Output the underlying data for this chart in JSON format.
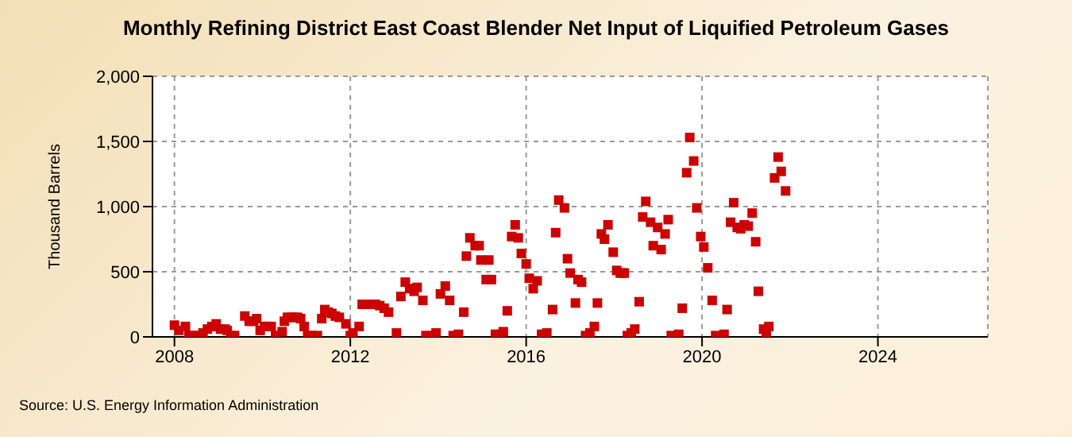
{
  "chart_data": {
    "type": "scatter",
    "title": "Monthly Refining District East Coast Blender Net Input of Liquified Petroleum Gases",
    "ylabel": "Thousand Barrels",
    "annotations": [
      "Source: U.S. Energy Information Administration"
    ],
    "marker": "square",
    "grid": true,
    "legend": false,
    "xlim": [
      2007.5,
      2026.5
    ],
    "xticks": [
      2008,
      2012,
      2016,
      2020,
      2024
    ],
    "ylim": [
      0,
      2000
    ],
    "yticks": [
      {
        "value": 0,
        "label": "0"
      },
      {
        "value": 500,
        "label": "500"
      },
      {
        "value": 1000,
        "label": "1,000"
      },
      {
        "value": 1500,
        "label": "1,500"
      },
      {
        "value": 2000,
        "label": "2,000"
      }
    ],
    "series": [
      {
        "color": "#cc0000",
        "x": [
          2008.0,
          2008.1,
          2008.25,
          2008.33,
          2008.42,
          2008.5,
          2008.65,
          2008.75,
          2008.85,
          2008.95,
          2009.05,
          2009.15,
          2009.2,
          2009.28,
          2009.37,
          2009.6,
          2009.7,
          2009.8,
          2009.87,
          2009.95,
          2010.05,
          2010.13,
          2010.2,
          2010.3,
          2010.45,
          2010.5,
          2010.57,
          2010.65,
          2010.73,
          2010.8,
          2010.87,
          2010.95,
          2011.03,
          2011.13,
          2011.25,
          2011.35,
          2011.42,
          2011.5,
          2011.58,
          2011.66,
          2011.75,
          2011.9,
          2012.0,
          2012.06,
          2012.2,
          2012.27,
          2012.47,
          2012.57,
          2012.67,
          2012.77,
          2012.87,
          2013.05,
          2013.15,
          2013.25,
          2013.35,
          2013.45,
          2013.52,
          2013.65,
          2013.72,
          2013.85,
          2013.95,
          2014.05,
          2014.16,
          2014.26,
          2014.34,
          2014.46,
          2014.58,
          2014.64,
          2014.72,
          2014.84,
          2014.93,
          2014.97,
          2015.09,
          2015.15,
          2015.21,
          2015.3,
          2015.42,
          2015.48,
          2015.57,
          2015.67,
          2015.75,
          2015.82,
          2015.89,
          2016.0,
          2016.07,
          2016.16,
          2016.25,
          2016.35,
          2016.47,
          2016.6,
          2016.67,
          2016.74,
          2016.87,
          2016.94,
          2017.0,
          2017.12,
          2017.18,
          2017.26,
          2017.35,
          2017.45,
          2017.55,
          2017.62,
          2017.71,
          2017.78,
          2017.86,
          2017.98,
          2018.06,
          2018.14,
          2018.19,
          2018.23,
          2018.3,
          2018.39,
          2018.47,
          2018.57,
          2018.65,
          2018.72,
          2018.83,
          2018.89,
          2018.99,
          2019.07,
          2019.16,
          2019.23,
          2019.3,
          2019.47,
          2019.55,
          2019.65,
          2019.72,
          2019.81,
          2019.88,
          2019.97,
          2020.04,
          2020.13,
          2020.23,
          2020.31,
          2020.5,
          2020.57,
          2020.65,
          2020.72,
          2020.8,
          2020.88,
          2020.96,
          2021.05,
          2021.14,
          2021.22,
          2021.28,
          2021.4,
          2021.46,
          2021.52,
          2021.65,
          2021.73,
          2021.8,
          2021.9
        ],
        "values": [
          90,
          50,
          80,
          10,
          10,
          10,
          30,
          60,
          80,
          100,
          60,
          60,
          50,
          10,
          10,
          160,
          120,
          120,
          140,
          50,
          80,
          80,
          80,
          10,
          40,
          120,
          150,
          150,
          150,
          150,
          140,
          80,
          10,
          10,
          10,
          140,
          210,
          190,
          180,
          160,
          150,
          100,
          10,
          30,
          80,
          250,
          250,
          250,
          240,
          220,
          190,
          30,
          310,
          420,
          370,
          350,
          380,
          280,
          10,
          10,
          30,
          330,
          390,
          280,
          10,
          20,
          190,
          620,
          760,
          700,
          700,
          590,
          440,
          590,
          440,
          20,
          20,
          40,
          200,
          770,
          860,
          760,
          640,
          560,
          450,
          370,
          430,
          20,
          30,
          210,
          800,
          1050,
          990,
          600,
          490,
          260,
          440,
          420,
          10,
          30,
          80,
          260,
          790,
          750,
          860,
          650,
          510,
          490,
          490,
          490,
          10,
          30,
          60,
          270,
          920,
          1040,
          880,
          700,
          840,
          670,
          790,
          900,
          10,
          20,
          220,
          1260,
          1530,
          1350,
          990,
          770,
          690,
          530,
          280,
          10,
          20,
          210,
          880,
          1030,
          840,
          830,
          860,
          850,
          950,
          730,
          350,
          60,
          10,
          80,
          1220,
          1380,
          1270,
          1120
        ]
      }
    ]
  }
}
